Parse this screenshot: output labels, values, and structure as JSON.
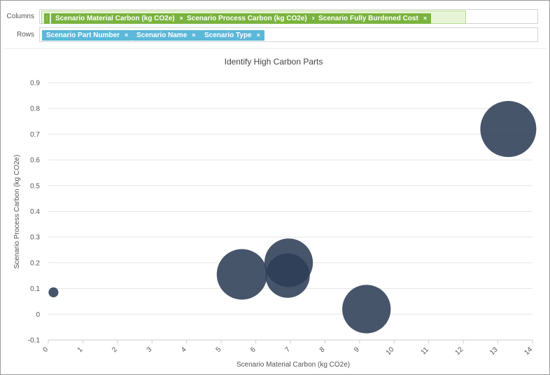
{
  "shelves": {
    "columns_label": "Columns",
    "rows_label": "Rows",
    "columns": [
      {
        "label": "Scenario Material Carbon (kg CO2e)"
      },
      {
        "label": "Scenario Process Carbon (kg CO2e)"
      },
      {
        "label": "Scenario Fully Burdened Cost"
      }
    ],
    "rows": [
      {
        "label": "Scenario Part Number"
      },
      {
        "label": "Scenario Name"
      },
      {
        "label": "Scenario Type"
      }
    ],
    "remove_glyph": "×",
    "grip_glyph": "⋮⋮"
  },
  "colors": {
    "bubble": "#2e3d56",
    "column_pill": "#7ab33f",
    "row_pill": "#5bb8d9",
    "gridline": "#e6e6e6"
  },
  "chart_data": {
    "type": "scatter",
    "title": "Identify High Carbon Parts",
    "xlabel": "Scenario Material Carbon (kg CO2e)",
    "ylabel": "Scenario Process Carbon (kg CO2e)",
    "xlim": [
      0,
      14
    ],
    "ylim": [
      -0.1,
      0.9
    ],
    "x_ticks": [
      0,
      1,
      2,
      3,
      4,
      5,
      6,
      7,
      8,
      9,
      10,
      11,
      12,
      13,
      14
    ],
    "y_ticks": [
      -0.1,
      0,
      0.1,
      0.2,
      0.3,
      0.4,
      0.5,
      0.6,
      0.7,
      0.8,
      0.9
    ],
    "grid": "horizontal",
    "size_encoding": "Scenario Fully Burdened Cost",
    "points": [
      {
        "x": 0.15,
        "y": 0.085,
        "size": 1
      },
      {
        "x": 5.6,
        "y": 0.155,
        "size": 26
      },
      {
        "x": 6.95,
        "y": 0.2,
        "size": 24
      },
      {
        "x": 6.92,
        "y": 0.15,
        "size": 20
      },
      {
        "x": 9.2,
        "y": 0.02,
        "size": 24
      },
      {
        "x": 13.3,
        "y": 0.72,
        "size": 32
      }
    ]
  }
}
